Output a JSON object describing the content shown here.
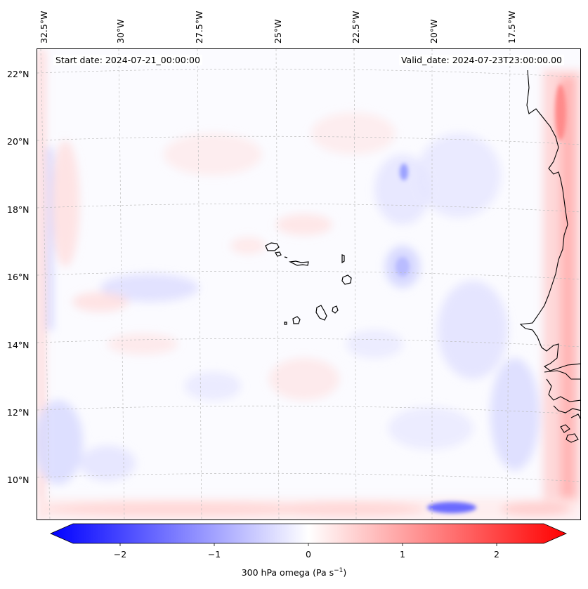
{
  "map": {
    "start_date": "Start date: 2024-07-21_00:00:00",
    "valid_date": "Valid_date: 2024-07-23T23:00:00.00",
    "lon_labels": [
      "32.5°W",
      "30°W",
      "27.5°W",
      "25°W",
      "22.5°W",
      "20°W",
      "17.5°W"
    ],
    "lat_labels": [
      "22°N",
      "20°N",
      "18°N",
      "16°N",
      "14°N",
      "12°N",
      "10°N"
    ],
    "islands": [
      "Santo Antão",
      "São Vicente",
      "Santa Luzia",
      "São Nicolau",
      "Sal",
      "Boa Vista",
      "Maio",
      "Santiago",
      "Fogo",
      "Brava"
    ],
    "coastline": "West Africa"
  },
  "colorbar": {
    "ticks": [
      "−2",
      "−1",
      "0",
      "1",
      "2"
    ],
    "tick_values": [
      -2,
      -1,
      0,
      1,
      2
    ],
    "range": [
      -2.5,
      2.5
    ],
    "label_main": "300 hPa omega (Pa s",
    "label_sup": "−1",
    "label_end": ")",
    "colors": {
      "min": "#0000ff",
      "mid": "#ffffff",
      "max": "#ff0000"
    }
  }
}
